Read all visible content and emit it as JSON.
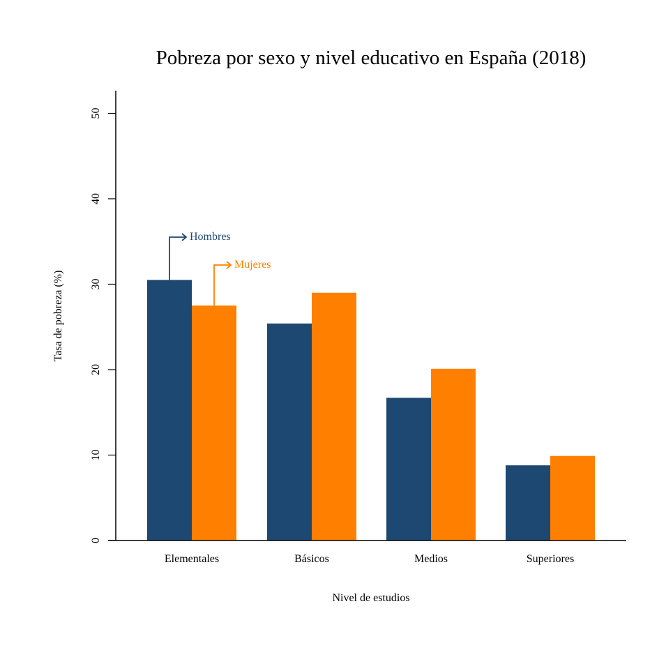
{
  "chart_data": {
    "type": "bar",
    "title": "Pobreza por sexo y nivel educativo en España (2018)",
    "xlabel": "Nivel de estudios",
    "ylabel": "Tasa de pobreza (%)",
    "ylim": [
      0,
      52
    ],
    "yticks": [
      "0",
      "10",
      "20",
      "30",
      "40",
      "50"
    ],
    "categories": [
      "Elementales",
      "Básicos",
      "Medios",
      "Superiores"
    ],
    "series": [
      {
        "name": "Hombres",
        "color": "#1d4872",
        "values": [
          30.5,
          25.4,
          16.7,
          8.8
        ]
      },
      {
        "name": "Mujeres",
        "color": "#ff8000",
        "values": [
          27.5,
          29.0,
          20.1,
          9.9
        ]
      }
    ],
    "legend": "annotation arrows on first category bars",
    "grid": false
  }
}
